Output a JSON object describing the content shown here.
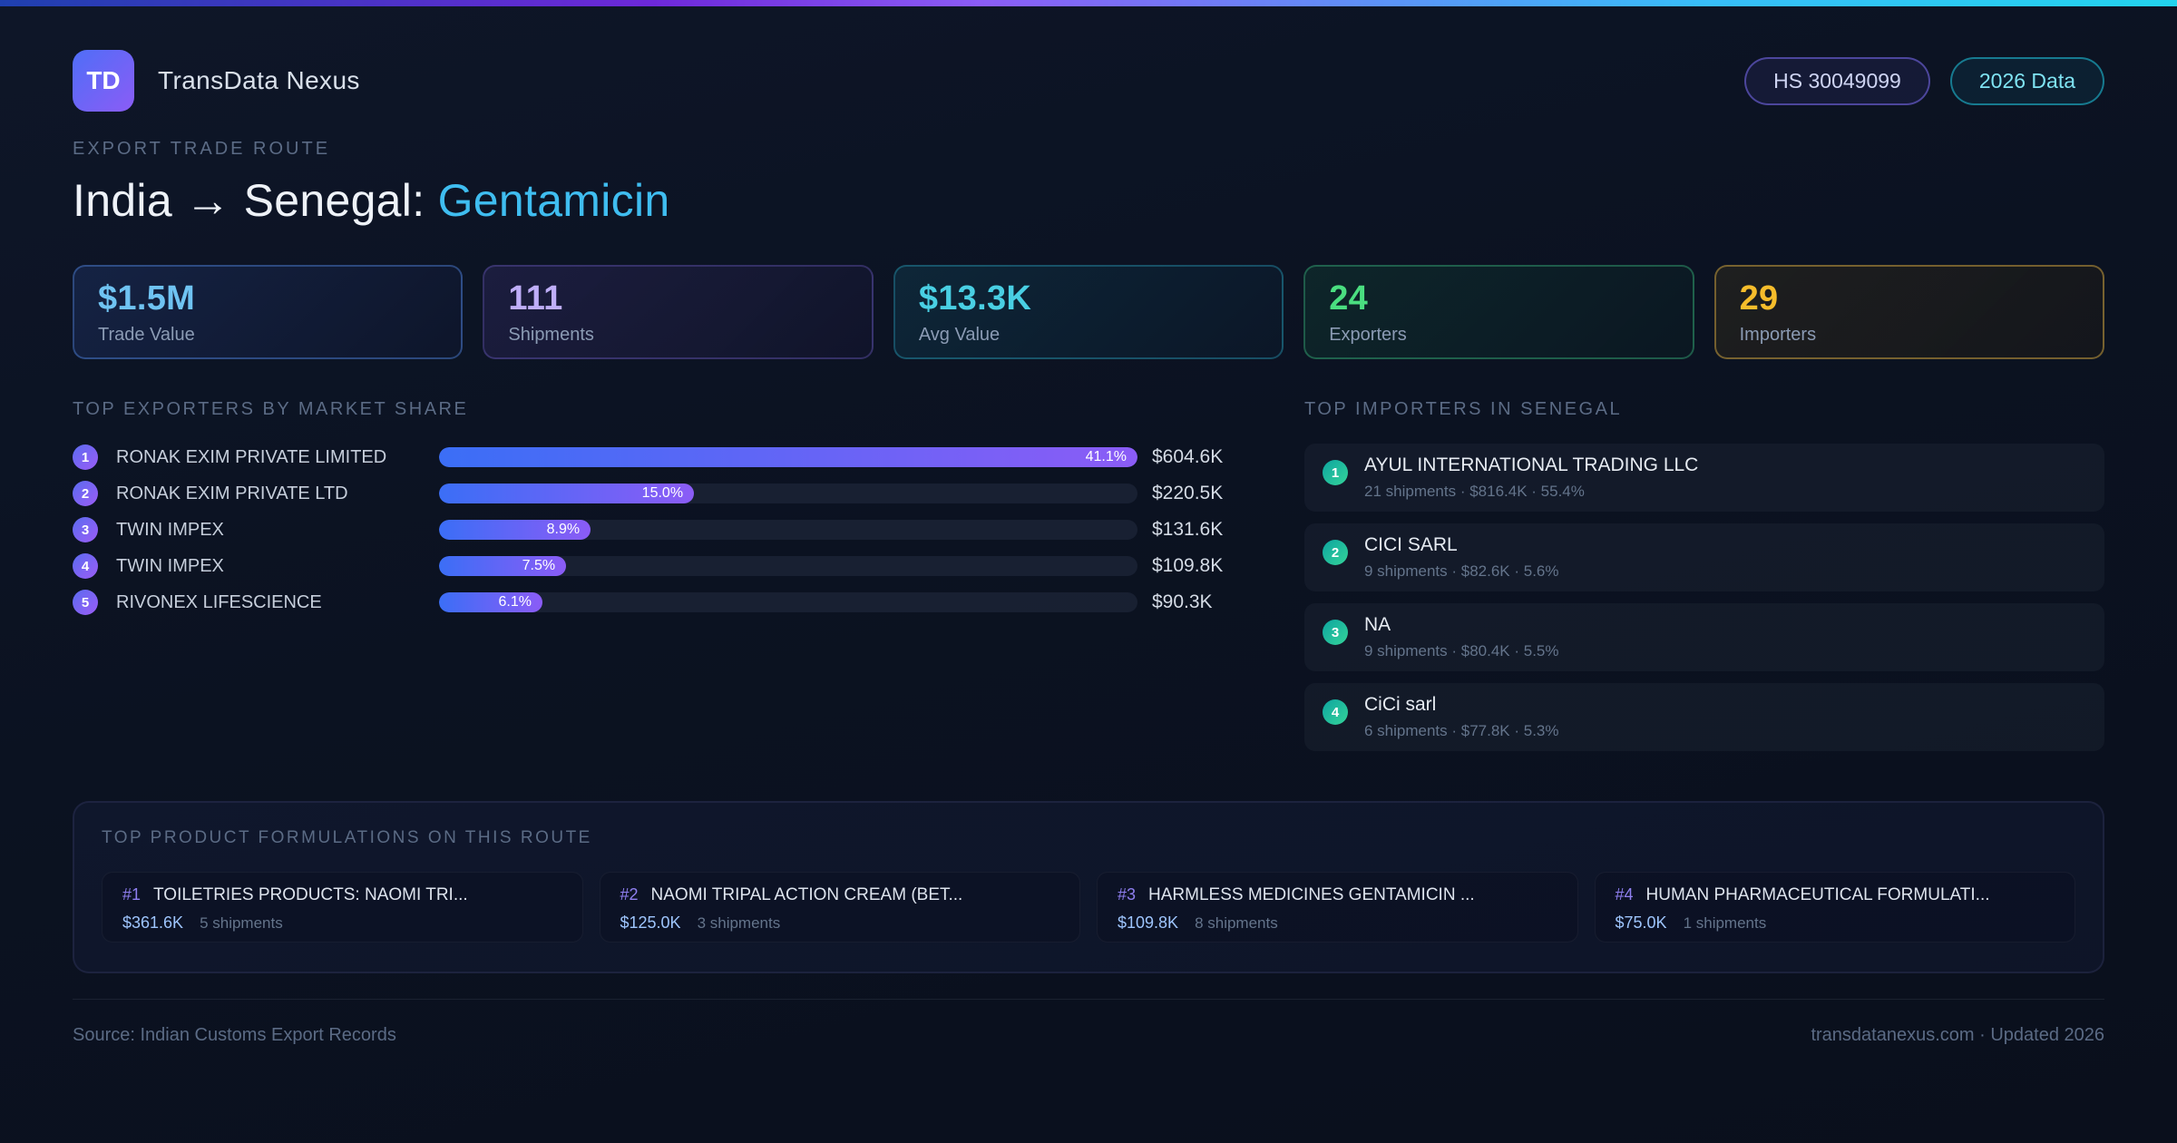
{
  "colors": {
    "accent_blue": "#3b6ef6",
    "accent_purple": "#8b5cf6",
    "accent_cyan": "#38bdf8",
    "accent_green": "#4ade80",
    "accent_amber": "#fbbf24"
  },
  "header": {
    "logo_text": "TD",
    "app_name": "TransData Nexus",
    "hs_badge": "HS 30049099",
    "year_badge": "2026 Data"
  },
  "hero": {
    "eyebrow": "EXPORT TRADE ROUTE",
    "title_prefix": "India → Senegal: ",
    "title_accent": "Gentamicin",
    "accent_color": "#3fbdf0"
  },
  "stats": [
    {
      "value": "$1.5M",
      "label": "Trade Value",
      "color": "#6fc3f2"
    },
    {
      "value": "111",
      "label": "Shipments",
      "color": "#bfaef8"
    },
    {
      "value": "$13.3K",
      "label": "Avg Value",
      "color": "#49cfe3"
    },
    {
      "value": "24",
      "label": "Exporters",
      "color": "#4ade80"
    },
    {
      "value": "29",
      "label": "Importers",
      "color": "#f6bd2b"
    }
  ],
  "exporters": {
    "heading": "TOP EXPORTERS BY MARKET SHARE",
    "rows": [
      {
        "rank": "1",
        "name": "RONAK EXIM PRIVATE LIMITED",
        "share": "41.1%",
        "width_pct": 100,
        "value": "$604.6K"
      },
      {
        "rank": "2",
        "name": "RONAK EXIM PRIVATE LTD",
        "share": "15.0%",
        "width_pct": 36.5,
        "value": "$220.5K"
      },
      {
        "rank": "3",
        "name": "TWIN IMPEX",
        "share": "8.9%",
        "width_pct": 21.7,
        "value": "$131.6K"
      },
      {
        "rank": "4",
        "name": "TWIN IMPEX",
        "share": "7.5%",
        "width_pct": 18.2,
        "value": "$109.8K"
      },
      {
        "rank": "5",
        "name": "RIVONEX LIFESCIENCE",
        "share": "6.1%",
        "width_pct": 14.8,
        "value": "$90.3K"
      }
    ]
  },
  "importers": {
    "heading": "TOP IMPORTERS IN SENEGAL",
    "items": [
      {
        "rank": "1",
        "name": "AYUL INTERNATIONAL TRADING LLC",
        "meta": "21 shipments · $816.4K · 55.4%"
      },
      {
        "rank": "2",
        "name": "CICI SARL",
        "meta": "9 shipments · $82.6K · 5.6%"
      },
      {
        "rank": "3",
        "name": "NA",
        "meta": "9 shipments · $80.4K · 5.5%"
      },
      {
        "rank": "4",
        "name": "CiCi sarl",
        "meta": "6 shipments · $77.8K · 5.3%"
      }
    ]
  },
  "products": {
    "heading": "TOP PRODUCT FORMULATIONS ON THIS ROUTE",
    "cards": [
      {
        "rank": "#1",
        "name": "TOILETRIES PRODUCTS: NAOMI TRI...",
        "value": "$361.6K",
        "shipments": "5 shipments"
      },
      {
        "rank": "#2",
        "name": "NAOMI TRIPAL ACTION CREAM (BET...",
        "value": "$125.0K",
        "shipments": "3 shipments"
      },
      {
        "rank": "#3",
        "name": "HARMLESS MEDICINES GENTAMICIN ...",
        "value": "$109.8K",
        "shipments": "8 shipments"
      },
      {
        "rank": "#4",
        "name": "HUMAN PHARMACEUTICAL FORMULATI...",
        "value": "$75.0K",
        "shipments": "1 shipments"
      }
    ]
  },
  "footer": {
    "source": "Source: Indian Customs Export Records",
    "site_info": "transdatanexus.com · Updated 2026"
  }
}
